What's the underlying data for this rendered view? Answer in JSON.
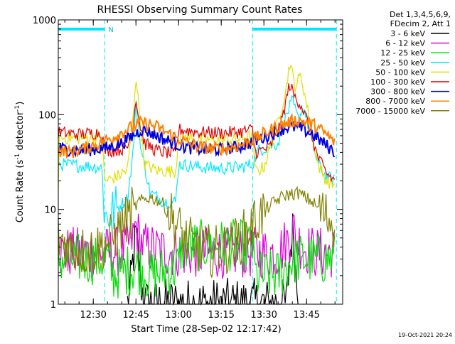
{
  "chart_data": {
    "type": "line",
    "title": "RHESSI Observing Summary Count Rates",
    "xlabel": "Start Time (28-Sep-02 12:17:42)",
    "ylabel_prefix": "Count Rate (s",
    "ylabel_sup1": "-1",
    "ylabel_mid": " detector",
    "ylabel_sup2": "-1",
    "ylabel_suffix": ")",
    "y_scale": "log",
    "ylim": [
      1,
      1000
    ],
    "xlim": [
      "12:17:42",
      "13:57:42"
    ],
    "x_ticks": [
      "12:30",
      "12:45",
      "13:00",
      "13:15",
      "13:30",
      "13:45"
    ],
    "y_ticks": [
      "1",
      "10",
      "100",
      "1000"
    ],
    "legend_header": [
      "Det 1,3,4,5,6,9,",
      "FDecim 2, Att 1"
    ],
    "legend_position": "right",
    "timestamp": "19-Oct-2021 20:24",
    "night_periods": [
      [
        "12:17:42",
        "12:34:00"
      ],
      [
        "13:26:00",
        "13:55:30"
      ]
    ],
    "night_label": "N",
    "series": [
      {
        "name": "3 - 6 keV",
        "color": "#000000",
        "points": [
          [
            "12:42",
            1
          ],
          [
            "12:43",
            1.4
          ],
          [
            "12:44",
            3
          ],
          [
            "12:45",
            5
          ],
          [
            "12:46",
            3
          ],
          [
            "12:47",
            1.5
          ],
          [
            "12:48",
            1
          ],
          [
            "13:38",
            1
          ],
          [
            "13:39",
            3
          ],
          [
            "13:40",
            6
          ],
          [
            "13:41",
            3
          ],
          [
            "13:42",
            1
          ]
        ]
      },
      {
        "name": "6 - 12 keV",
        "color": "#e000e0",
        "points": [
          [
            "12:17:42",
            3.5
          ],
          [
            "12:25",
            3.5
          ],
          [
            "12:30",
            3.5
          ],
          [
            "12:36",
            3.5
          ],
          [
            "12:40",
            3.6
          ],
          [
            "12:44",
            5
          ],
          [
            "12:45",
            7
          ],
          [
            "12:46",
            5
          ],
          [
            "12:48",
            4
          ],
          [
            "12:55",
            3.6
          ],
          [
            "13:05",
            3.5
          ],
          [
            "13:20",
            3.5
          ],
          [
            "13:35",
            3.5
          ],
          [
            "13:39",
            5
          ],
          [
            "13:40",
            7
          ],
          [
            "13:41",
            5
          ],
          [
            "13:44",
            4
          ],
          [
            "13:48",
            3.5
          ],
          [
            "13:55",
            3.5
          ]
        ]
      },
      {
        "name": "12 - 25 keV",
        "color": "#00e000",
        "points": [
          [
            "12:17:42",
            3
          ],
          [
            "12:35",
            3
          ],
          [
            "12:37",
            2
          ],
          [
            "12:45",
            2.5
          ],
          [
            "12:50",
            2
          ],
          [
            "13:00",
            2.5
          ],
          [
            "13:01",
            4
          ],
          [
            "13:10",
            4.2
          ],
          [
            "13:20",
            4.2
          ],
          [
            "13:26",
            4
          ],
          [
            "13:27",
            2
          ],
          [
            "13:35",
            2
          ],
          [
            "13:40",
            3
          ],
          [
            "13:45",
            3
          ],
          [
            "13:55",
            3
          ]
        ]
      },
      {
        "name": "25 - 50 keV",
        "color": "#00e8ff",
        "points": [
          [
            "12:17:42",
            30
          ],
          [
            "12:25",
            29
          ],
          [
            "12:33",
            28
          ],
          [
            "12:34",
            8
          ],
          [
            "12:38",
            10
          ],
          [
            "12:42",
            13
          ],
          [
            "12:44",
            40
          ],
          [
            "12:45",
            130
          ],
          [
            "12:47",
            40
          ],
          [
            "12:50",
            15
          ],
          [
            "12:55",
            12
          ],
          [
            "12:59",
            12
          ],
          [
            "13:00",
            30
          ],
          [
            "13:08",
            28
          ],
          [
            "13:15",
            27
          ],
          [
            "13:22",
            28
          ],
          [
            "13:26",
            30
          ],
          [
            "13:28",
            42
          ],
          [
            "13:35",
            50
          ],
          [
            "13:38",
            100
          ],
          [
            "13:40",
            140
          ],
          [
            "13:42",
            90
          ],
          [
            "13:44",
            120
          ],
          [
            "13:46",
            70
          ],
          [
            "13:49",
            30
          ],
          [
            "13:52",
            22
          ],
          [
            "13:55",
            20
          ]
        ]
      },
      {
        "name": "50 - 100 keV",
        "color": "#e0e000",
        "points": [
          [
            "12:17:42",
            18
          ],
          [
            "12:18",
            57
          ],
          [
            "12:25",
            56
          ],
          [
            "12:33",
            60
          ],
          [
            "12:34",
            20
          ],
          [
            "12:38",
            22
          ],
          [
            "12:42",
            26
          ],
          [
            "12:44",
            90
          ],
          [
            "12:45",
            270
          ],
          [
            "12:46",
            120
          ],
          [
            "12:48",
            30
          ],
          [
            "12:52",
            26
          ],
          [
            "12:59",
            25
          ],
          [
            "13:00",
            60
          ],
          [
            "13:08",
            55
          ],
          [
            "13:15",
            54
          ],
          [
            "13:22",
            55
          ],
          [
            "13:26",
            60
          ],
          [
            "13:27",
            25
          ],
          [
            "13:30",
            28
          ],
          [
            "13:35",
            85
          ],
          [
            "13:38",
            200
          ],
          [
            "13:39",
            360
          ],
          [
            "13:41",
            200
          ],
          [
            "13:43",
            260
          ],
          [
            "13:45",
            130
          ],
          [
            "13:49",
            30
          ],
          [
            "13:52",
            20
          ],
          [
            "13:55",
            18
          ]
        ]
      },
      {
        "name": "100 - 300 keV",
        "color": "#e00000",
        "points": [
          [
            "12:17:42",
            65
          ],
          [
            "12:25",
            62
          ],
          [
            "12:33",
            65
          ],
          [
            "12:34",
            42
          ],
          [
            "12:38",
            42
          ],
          [
            "12:42",
            45
          ],
          [
            "12:44",
            75
          ],
          [
            "12:45",
            160
          ],
          [
            "12:46",
            90
          ],
          [
            "12:48",
            50
          ],
          [
            "12:52",
            42
          ],
          [
            "12:59",
            38
          ],
          [
            "13:00",
            70
          ],
          [
            "13:08",
            65
          ],
          [
            "13:15",
            64
          ],
          [
            "13:22",
            66
          ],
          [
            "13:26",
            70
          ],
          [
            "13:27",
            40
          ],
          [
            "13:32",
            45
          ],
          [
            "13:36",
            80
          ],
          [
            "13:38",
            150
          ],
          [
            "13:39",
            210
          ],
          [
            "13:41",
            150
          ],
          [
            "13:43",
            130
          ],
          [
            "13:45",
            90
          ],
          [
            "13:49",
            35
          ],
          [
            "13:52",
            24
          ],
          [
            "13:55",
            20
          ]
        ]
      },
      {
        "name": "300 - 800 keV",
        "color": "#0000e0",
        "points": [
          [
            "12:17:42",
            44
          ],
          [
            "12:25",
            42
          ],
          [
            "12:30",
            43
          ],
          [
            "12:35",
            45
          ],
          [
            "12:40",
            50
          ],
          [
            "12:44",
            60
          ],
          [
            "12:47",
            70
          ],
          [
            "12:50",
            65
          ],
          [
            "12:55",
            55
          ],
          [
            "13:00",
            48
          ],
          [
            "13:05",
            44
          ],
          [
            "13:10",
            43
          ],
          [
            "13:15",
            43
          ],
          [
            "13:20",
            45
          ],
          [
            "13:25",
            50
          ],
          [
            "13:30",
            58
          ],
          [
            "13:35",
            68
          ],
          [
            "13:39",
            75
          ],
          [
            "13:43",
            72
          ],
          [
            "13:47",
            62
          ],
          [
            "13:51",
            50
          ],
          [
            "13:55",
            40
          ]
        ]
      },
      {
        "name": "800 - 7000 keV",
        "color": "#ff8000",
        "points": [
          [
            "12:17:42",
            42
          ],
          [
            "12:22",
            40
          ],
          [
            "12:27",
            44
          ],
          [
            "12:32",
            50
          ],
          [
            "12:37",
            58
          ],
          [
            "12:42",
            70
          ],
          [
            "12:47",
            82
          ],
          [
            "12:52",
            75
          ],
          [
            "12:57",
            62
          ],
          [
            "13:02",
            52
          ],
          [
            "13:07",
            46
          ],
          [
            "13:12",
            44
          ],
          [
            "13:17",
            44
          ],
          [
            "13:22",
            48
          ],
          [
            "13:27",
            56
          ],
          [
            "13:32",
            68
          ],
          [
            "13:37",
            80
          ],
          [
            "13:42",
            88
          ],
          [
            "13:47",
            80
          ],
          [
            "13:52",
            62
          ],
          [
            "13:55",
            50
          ]
        ]
      },
      {
        "name": "7000 - 15000 keV",
        "color": "#808000",
        "points": [
          [
            "12:17:42",
            5
          ],
          [
            "12:22",
            4
          ],
          [
            "12:27",
            3.6
          ],
          [
            "12:32",
            4
          ],
          [
            "12:37",
            5
          ],
          [
            "12:42",
            8
          ],
          [
            "12:46",
            12
          ],
          [
            "12:50",
            13.5
          ],
          [
            "12:54",
            12
          ],
          [
            "12:58",
            8
          ],
          [
            "13:02",
            5
          ],
          [
            "13:06",
            4
          ],
          [
            "13:12",
            3.6
          ],
          [
            "13:18",
            4
          ],
          [
            "13:22",
            5
          ],
          [
            "13:27",
            7.5
          ],
          [
            "13:32",
            11
          ],
          [
            "13:37",
            14
          ],
          [
            "13:42",
            15
          ],
          [
            "13:47",
            12
          ],
          [
            "13:51",
            9
          ],
          [
            "13:55",
            7
          ]
        ]
      }
    ]
  }
}
